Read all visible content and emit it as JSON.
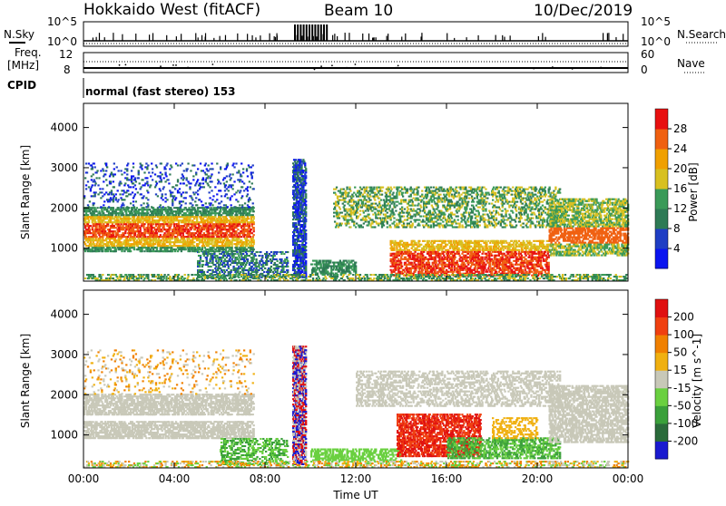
{
  "header": {
    "radar": "Hokkaido West (fitACF)",
    "beam": "Beam 10",
    "date": "10/Dec/2019"
  },
  "top_panel": {
    "nsky_label": "N.Sky",
    "nsearch_label": "N.Search",
    "left_ticks": [
      "10^5",
      "10^0"
    ],
    "right_ticks": [
      "10^5",
      "10^0"
    ],
    "freq_label": "Freq.",
    "freq_unit": "[MHz]",
    "freq_ticks": [
      "12",
      "8"
    ],
    "nave_label": "Nave",
    "nave_ticks": [
      "60",
      "0"
    ],
    "cpid_label": "CPID",
    "cpid_text": "normal (fast stereo) 153"
  },
  "colors": {
    "power": [
      "#0a14f0",
      "#1f3ec4",
      "#2e7a55",
      "#3a9a58",
      "#d8c020",
      "#f0a000",
      "#f06010",
      "#e81010"
    ],
    "velocity": [
      "#1a1ad0",
      "#2a6a3a",
      "#3aa03a",
      "#6ad040",
      "#c8c8b8",
      "#f0b010",
      "#f08000",
      "#f04010",
      "#e01010"
    ]
  },
  "chart_data": [
    {
      "type": "heatmap",
      "ylabel": "Slant Range [km]",
      "xlabel": "Time UT",
      "x_ticks": [
        "00:00",
        "04:00",
        "08:00",
        "12:00",
        "16:00",
        "20:00",
        "00:00"
      ],
      "y_ticks": [
        1000,
        2000,
        3000,
        4000
      ],
      "ylim": [
        180,
        4600
      ],
      "colorbar_label": "Power [dB]",
      "colorbar_ticks": [
        "28",
        "24",
        "20",
        "16",
        "12",
        "8",
        "4"
      ]
    },
    {
      "type": "heatmap",
      "ylabel": "Slant Range [km]",
      "xlabel": "Time UT",
      "x_ticks": [
        "00:00",
        "04:00",
        "08:00",
        "12:00",
        "16:00",
        "20:00",
        "00:00"
      ],
      "y_ticks": [
        1000,
        2000,
        3000,
        4000
      ],
      "ylim": [
        180,
        4600
      ],
      "colorbar_label": "Velocity [m s^-1]",
      "colorbar_ticks": [
        "200",
        "100",
        "50",
        "15",
        "-15",
        "-50",
        "-100",
        "-200"
      ]
    }
  ]
}
